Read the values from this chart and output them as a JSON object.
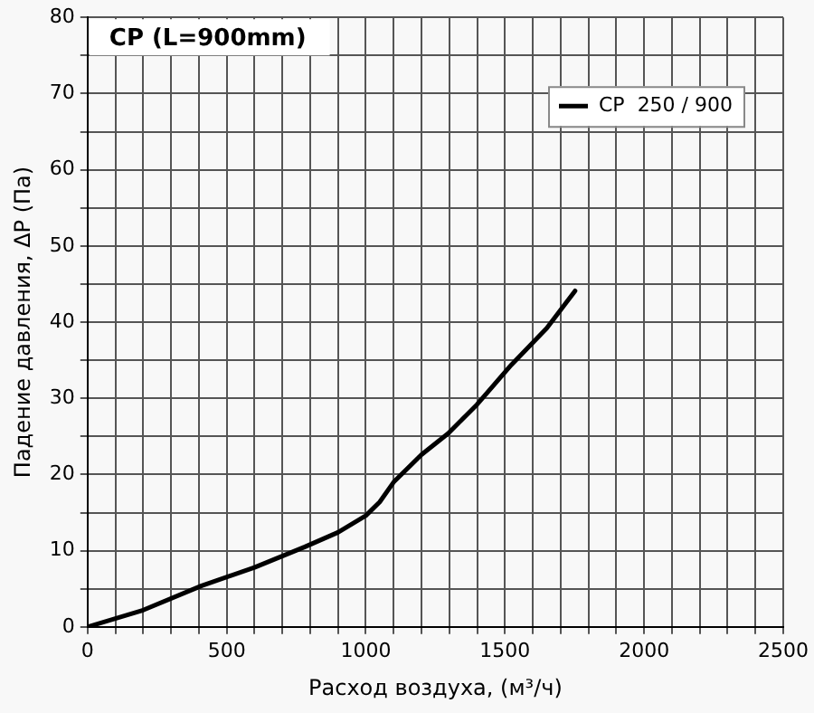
{
  "chart_data": {
    "type": "line",
    "title": "CP (L=900mm)",
    "xlabel": "Расход воздуха, (м³/ч)",
    "ylabel": "Падение давления, ΔP (Па)",
    "x": [
      0,
      200,
      410,
      600,
      781,
      900,
      1000,
      1050,
      1100,
      1200,
      1296,
      1400,
      1523,
      1650,
      1752
    ],
    "series": [
      {
        "name": "CP  250 / 900",
        "color": "#000000",
        "values": [
          0,
          2.2,
          5.4,
          7.8,
          10.5,
          12.4,
          14.6,
          16.4,
          19,
          22.6,
          25.4,
          29.2,
          34.4,
          39.2,
          44.1
        ]
      }
    ],
    "xlim": [
      0,
      2500
    ],
    "ylim": [
      0,
      80
    ],
    "xticks": [
      0,
      {
        "value": 100,
        "label": null
      },
      {
        "value": 200,
        "label": null
      },
      {
        "value": 300,
        "label": null
      },
      {
        "value": 400,
        "label": null
      },
      500,
      {
        "value": 600,
        "label": null
      },
      {
        "value": 700,
        "label": null
      },
      {
        "value": 800,
        "label": null
      },
      {
        "value": 900,
        "label": null
      },
      1000,
      {
        "value": 1100,
        "label": null
      },
      {
        "value": 1200,
        "label": null
      },
      {
        "value": 1300,
        "label": null
      },
      {
        "value": 1400,
        "label": null
      },
      1500,
      {
        "value": 1600,
        "label": null
      },
      {
        "value": 1700,
        "label": null
      },
      {
        "value": 1800,
        "label": null
      },
      {
        "value": 1900,
        "label": null
      },
      2000,
      {
        "value": 2100,
        "label": null
      },
      {
        "value": 2200,
        "label": null
      },
      {
        "value": 2300,
        "label": null
      },
      {
        "value": 2400,
        "label": null
      },
      2500
    ],
    "yticks": [
      0,
      {
        "value": 5,
        "label": null
      },
      10,
      {
        "value": 15,
        "label": null
      },
      20,
      {
        "value": 25,
        "label": null
      },
      30,
      {
        "value": 35,
        "label": null
      },
      40,
      {
        "value": 45,
        "label": null
      },
      50,
      {
        "value": 55,
        "label": null
      },
      60,
      {
        "value": 65,
        "label": null
      },
      70,
      {
        "value": 75,
        "label": null
      },
      80
    ],
    "grid": true,
    "legend": "top right",
    "marker": "none",
    "line_style": "solid"
  }
}
